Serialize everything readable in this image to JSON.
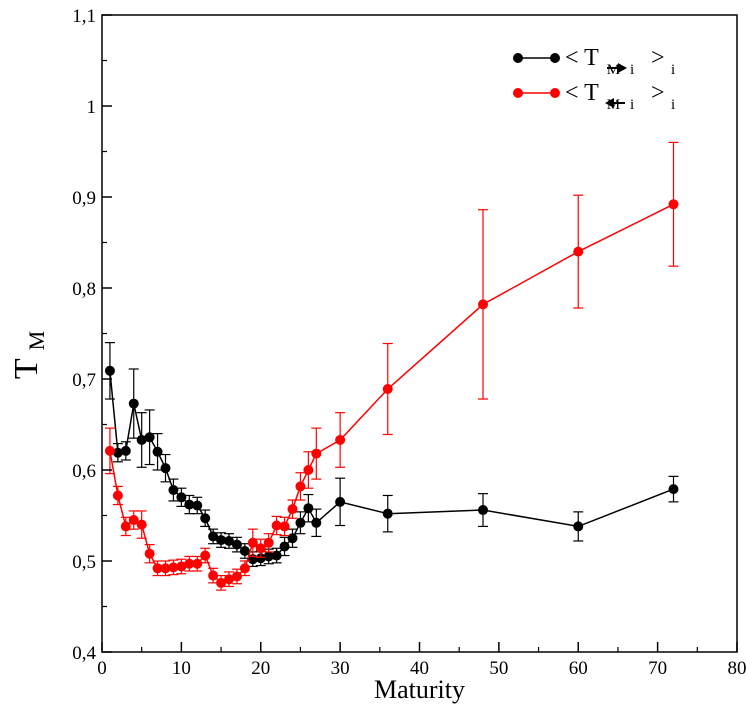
{
  "chart_data": {
    "type": "line",
    "xlabel": "Maturity",
    "ylabel_main": "T",
    "ylabel_sub": "M",
    "xlim": [
      0,
      80
    ],
    "ylim": [
      0.4,
      1.1
    ],
    "x_ticks": [
      0,
      10,
      20,
      30,
      40,
      50,
      60,
      70,
      80
    ],
    "x_tick_labels": [
      "0",
      "10",
      "20",
      "30",
      "40",
      "50",
      "60",
      "70",
      "80"
    ],
    "y_ticks": [
      0.4,
      0.5,
      0.6,
      0.7,
      0.8,
      0.9,
      1.0,
      1.1
    ],
    "y_tick_labels": [
      "0,4",
      "0,5",
      "0,6",
      "0,7",
      "0,8",
      "0,9",
      "1",
      "1,1"
    ],
    "grid": false,
    "legend_position": "top-right",
    "series": [
      {
        "legend_main": "< T",
        "legend_sub": "M",
        "legend_arrow": "right",
        "legend_i": "i",
        "legend_close": ">",
        "legend_outer_sub": "i",
        "color": "#000000",
        "x": [
          1,
          2,
          3,
          4,
          5,
          6,
          7,
          8,
          9,
          10,
          11,
          12,
          13,
          14,
          15,
          16,
          17,
          18,
          19,
          20,
          21,
          22,
          23,
          24,
          25,
          26,
          27,
          30,
          36,
          48,
          60,
          72
        ],
        "y": [
          0.709,
          0.619,
          0.621,
          0.673,
          0.633,
          0.636,
          0.62,
          0.602,
          0.578,
          0.57,
          0.562,
          0.561,
          0.547,
          0.527,
          0.523,
          0.522,
          0.518,
          0.511,
          0.502,
          0.503,
          0.505,
          0.506,
          0.516,
          0.525,
          0.542,
          0.558,
          0.542,
          0.565,
          0.552,
          0.556,
          0.538,
          0.579
        ],
        "err": [
          0.031,
          0.01,
          0.01,
          0.038,
          0.03,
          0.03,
          0.02,
          0.015,
          0.012,
          0.01,
          0.01,
          0.009,
          0.009,
          0.008,
          0.008,
          0.008,
          0.008,
          0.008,
          0.008,
          0.008,
          0.008,
          0.008,
          0.01,
          0.01,
          0.012,
          0.015,
          0.015,
          0.026,
          0.02,
          0.018,
          0.016,
          0.014
        ]
      },
      {
        "legend_main": "< T",
        "legend_sub": "M",
        "legend_arrow": "left",
        "legend_i": "i",
        "legend_close": ">",
        "legend_outer_sub": "i",
        "color": "#ff0000",
        "x": [
          1,
          2,
          3,
          4,
          5,
          6,
          7,
          8,
          9,
          10,
          11,
          12,
          13,
          14,
          15,
          16,
          17,
          18,
          19,
          20,
          21,
          22,
          23,
          24,
          25,
          26,
          27,
          30,
          36,
          48,
          60,
          72
        ],
        "y": [
          0.621,
          0.572,
          0.538,
          0.545,
          0.54,
          0.508,
          0.492,
          0.492,
          0.493,
          0.494,
          0.497,
          0.497,
          0.506,
          0.484,
          0.476,
          0.48,
          0.483,
          0.492,
          0.52,
          0.514,
          0.52,
          0.539,
          0.538,
          0.557,
          0.582,
          0.6,
          0.618,
          0.633,
          0.689,
          0.782,
          0.84,
          0.892
        ],
        "err": [
          0.025,
          0.01,
          0.01,
          0.01,
          0.015,
          0.01,
          0.008,
          0.008,
          0.008,
          0.008,
          0.008,
          0.008,
          0.008,
          0.008,
          0.008,
          0.008,
          0.008,
          0.008,
          0.015,
          0.01,
          0.01,
          0.01,
          0.01,
          0.01,
          0.015,
          0.02,
          0.028,
          0.03,
          0.05,
          0.104,
          0.062,
          0.068
        ]
      }
    ]
  }
}
